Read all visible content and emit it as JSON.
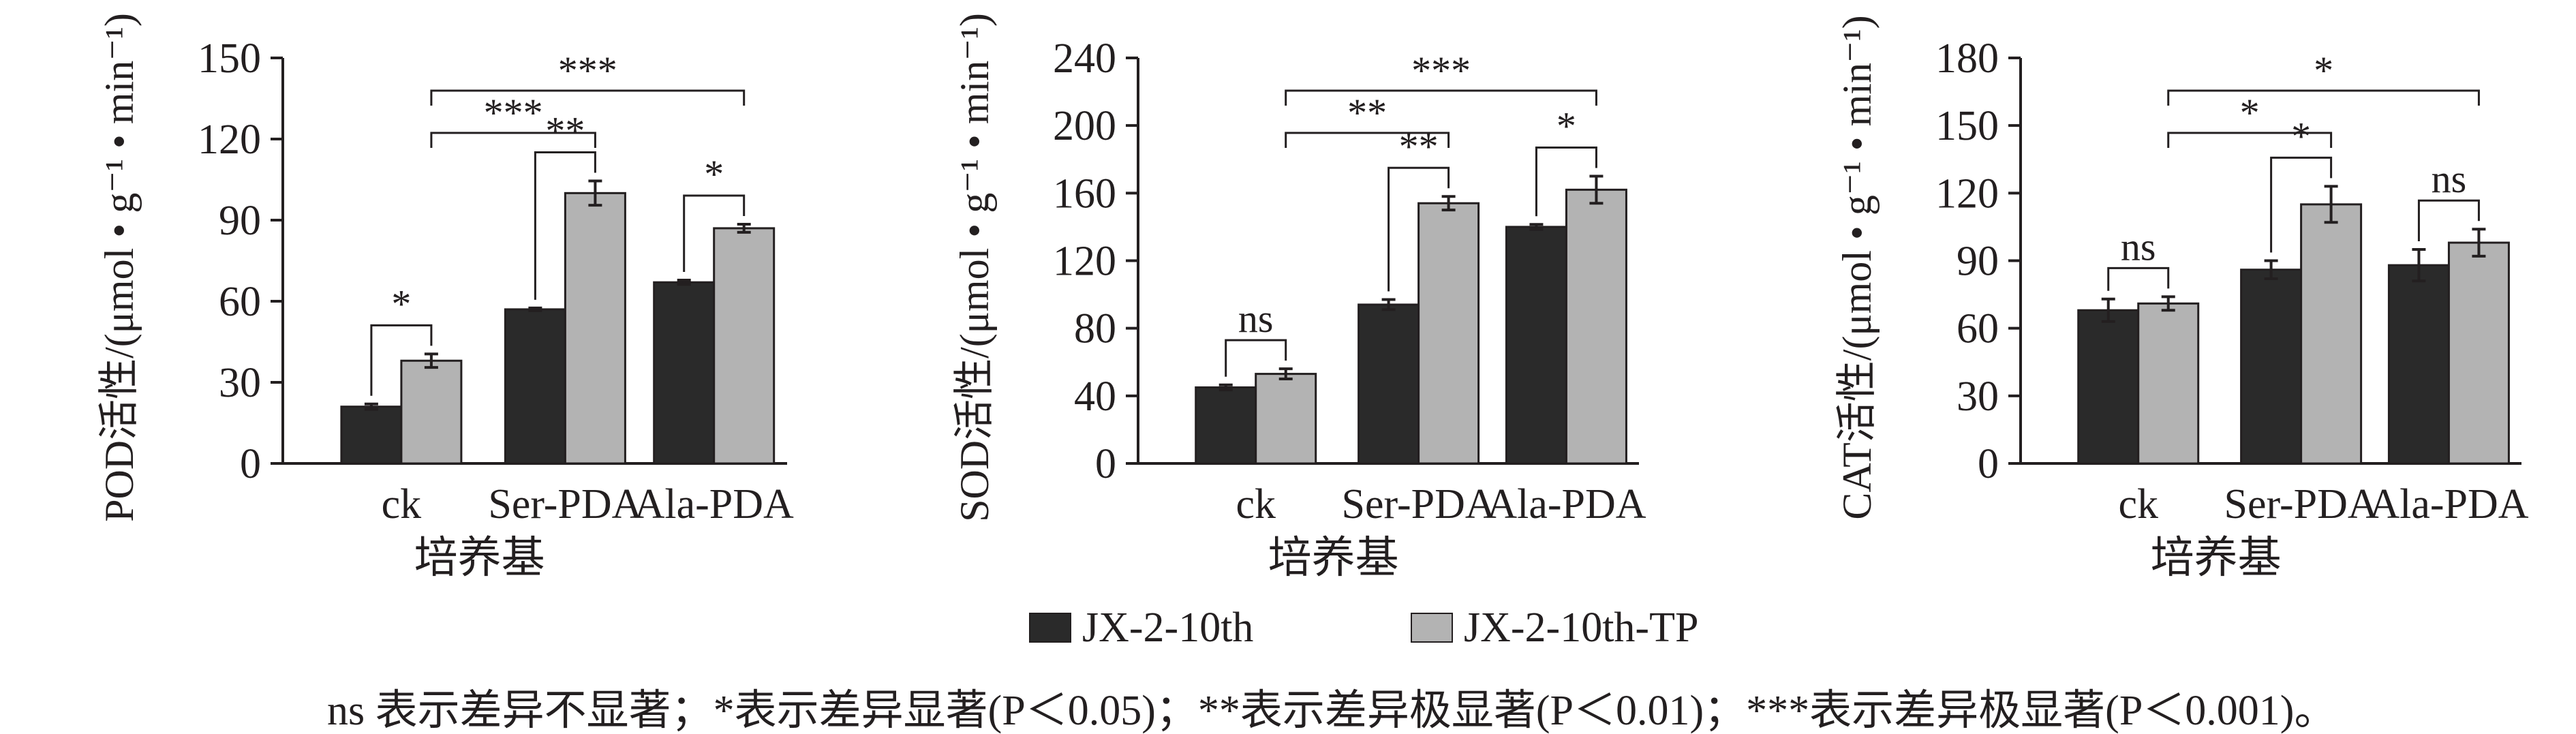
{
  "colors": {
    "series1": "#2a2a2a",
    "series2": "#b3b3b3",
    "axis": "#231f20"
  },
  "legend": [
    {
      "name": "JX-2-10th",
      "color": "#2a2a2a"
    },
    {
      "name": "JX-2-10th-TP",
      "color": "#b3b3b3"
    }
  ],
  "note": "ns 表示差异不显著；*表示差异显著(P＜0.05)；**表示差异极显著(P＜0.01)；***表示差异极显著(P＜0.001)。",
  "chart_data": [
    {
      "type": "bar",
      "ylabel": "POD活性/(μmol • g⁻¹ • min⁻¹)",
      "xlabel": "培养基",
      "ylim": [
        0,
        150
      ],
      "yticks": [
        0,
        30,
        60,
        90,
        120,
        150
      ],
      "categories": [
        "ck",
        "Ser-PDA",
        "Ala-PDA"
      ],
      "series": [
        {
          "name": "JX-2-10th",
          "values": [
            21,
            57,
            67
          ],
          "errors": [
            1,
            0.5,
            0.8
          ]
        },
        {
          "name": "JX-2-10th-TP",
          "values": [
            38,
            100,
            87
          ],
          "errors": [
            2.5,
            4.5,
            1.5
          ]
        }
      ],
      "within_sig": [
        "*",
        "**",
        "*"
      ],
      "between_sig": [
        {
          "from": "ck",
          "to": "Ser-PDA",
          "label": "***"
        },
        {
          "from": "ck",
          "to": "Ala-PDA",
          "label": "***"
        }
      ]
    },
    {
      "type": "bar",
      "ylabel": "SOD活性/(μmol • g⁻¹ • min⁻¹)",
      "xlabel": "培养基",
      "ylim": [
        0,
        240
      ],
      "yticks": [
        0,
        40,
        80,
        120,
        160,
        200,
        240
      ],
      "categories": [
        "ck",
        "Ser-PDA",
        "Ala-PDA"
      ],
      "series": [
        {
          "name": "JX-2-10th",
          "values": [
            45,
            94,
            140
          ],
          "errors": [
            1.5,
            3,
            1.5
          ]
        },
        {
          "name": "JX-2-10th-TP",
          "values": [
            53,
            154,
            162
          ],
          "errors": [
            3,
            4,
            8
          ]
        }
      ],
      "within_sig": [
        "ns",
        "**",
        "*"
      ],
      "between_sig": [
        {
          "from": "ck",
          "to": "Ser-PDA",
          "label": "**"
        },
        {
          "from": "ck",
          "to": "Ala-PDA",
          "label": "***"
        }
      ]
    },
    {
      "type": "bar",
      "ylabel": "CAT活性/(μmol • g⁻¹ • min⁻¹)",
      "xlabel": "培养基",
      "ylim": [
        0,
        180
      ],
      "yticks": [
        0,
        30,
        60,
        90,
        120,
        150,
        180
      ],
      "categories": [
        "ck",
        "Ser-PDA",
        "Ala-PDA"
      ],
      "series": [
        {
          "name": "JX-2-10th",
          "values": [
            68,
            86,
            88
          ],
          "errors": [
            5,
            4,
            7
          ]
        },
        {
          "name": "JX-2-10th-TP",
          "values": [
            71,
            115,
            98
          ],
          "errors": [
            3,
            8,
            6
          ]
        }
      ],
      "within_sig": [
        "ns",
        "*",
        "ns"
      ],
      "between_sig": [
        {
          "from": "ck",
          "to": "Ser-PDA",
          "label": "*"
        },
        {
          "from": "ck",
          "to": "Ala-PDA",
          "label": "*"
        }
      ]
    }
  ]
}
